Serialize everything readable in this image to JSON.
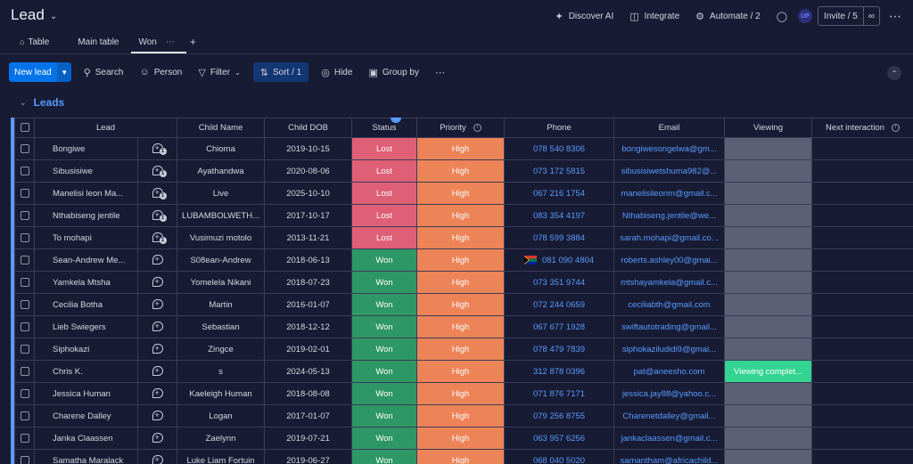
{
  "header": {
    "title": "Lead",
    "discover_ai": "Discover AI",
    "integrate": "Integrate",
    "automate": "Automate / 2",
    "avatar_initials": "UP",
    "invite": "Invite / 5"
  },
  "tabs": [
    {
      "label": "Table",
      "icon": "home-icon"
    },
    {
      "label": "Main table"
    },
    {
      "label": "Won",
      "active": true
    }
  ],
  "toolbar": {
    "new_lead": "New lead",
    "search": "Search",
    "person": "Person",
    "filter": "Filter",
    "sort": "Sort / 1",
    "hide": "Hide",
    "group_by": "Group by"
  },
  "group": {
    "title": "Leads",
    "color": "#579bfc"
  },
  "columns": [
    "Lead",
    "Child Name",
    "Child DOB",
    "Status",
    "Priority",
    "Phone",
    "Email",
    "Viewing",
    "Next interaction"
  ],
  "status_colors": {
    "Lost": "#df5f76",
    "Won": "#2e9766",
    "High": "#ed8457",
    "Viewing completed": "#33d391"
  },
  "rows": [
    {
      "lead": "Bongiwe",
      "updates": "1",
      "child": "Chioma",
      "dob": "2019-10-15",
      "status": "Lost",
      "priority": "High",
      "phone": "078 540 8306",
      "email": "bongiwesongelwa@gm...",
      "viewing": ""
    },
    {
      "lead": "Sibusisiwe",
      "updates": "1",
      "child": "Ayathandwa",
      "dob": "2020-08-06",
      "status": "Lost",
      "priority": "High",
      "phone": "073 172 5815",
      "email": "sibusisiwetshuma982@...",
      "viewing": ""
    },
    {
      "lead": "Manelisi leon Ma...",
      "updates": "1",
      "child": "Live",
      "dob": "2025-10-10",
      "status": "Lost",
      "priority": "High",
      "phone": "067 216 1754",
      "email": "manelisileonm@gmail.c...",
      "viewing": ""
    },
    {
      "lead": "Nthabiseng jentile",
      "updates": "1",
      "child": "LUBAMBOLWETH...",
      "dob": "2017-10-17",
      "status": "Lost",
      "priority": "High",
      "phone": "083 354 4197",
      "email": "Nthabiseng.jentile@we...",
      "viewing": ""
    },
    {
      "lead": "To mohapi",
      "updates": "1",
      "child": "Vusimuzi motolo",
      "dob": "2013-11-21",
      "status": "Lost",
      "priority": "High",
      "phone": "078 599 3884",
      "email": "sarah.mohapi@gmail.co...",
      "viewing": ""
    },
    {
      "lead": "Sean-Andrew Me...",
      "updates": "",
      "child": "S08ean-Andrew",
      "dob": "2018-06-13",
      "status": "Won",
      "priority": "High",
      "phone": "081 090 4804",
      "flag": true,
      "email": "roberts.ashley00@gmai...",
      "viewing": ""
    },
    {
      "lead": "Yamkela Mtsha",
      "updates": "",
      "child": "Yomelela Nikani",
      "dob": "2018-07-23",
      "status": "Won",
      "priority": "High",
      "phone": "073 351 9744",
      "email": "mtshayamkela@gmail.c...",
      "viewing": ""
    },
    {
      "lead": "Cecilia Botha",
      "updates": "",
      "child": "Martin",
      "dob": "2016-01-07",
      "status": "Won",
      "priority": "High",
      "phone": "072 244 0659",
      "email": "ceciliabth@gmail.com",
      "viewing": ""
    },
    {
      "lead": "Lieb Swiegers",
      "updates": "",
      "child": "Sebastian",
      "dob": "2018-12-12",
      "status": "Won",
      "priority": "High",
      "phone": "067 677 1928",
      "email": "swiftautotrading@gmail...",
      "viewing": ""
    },
    {
      "lead": "Siphokazi",
      "updates": "",
      "child": "Zingce",
      "dob": "2019-02-01",
      "status": "Won",
      "priority": "High",
      "phone": "078 479 7839",
      "email": "siphokaziludidi9@gmai...",
      "viewing": ""
    },
    {
      "lead": "Chris K.",
      "updates": "",
      "child": "s",
      "dob": "2024-05-13",
      "status": "Won",
      "priority": "High",
      "phone": "312 878 0396",
      "email": "pat@aneesho.com",
      "viewing": "Viewing complet..."
    },
    {
      "lead": "Jessica Human",
      "updates": "",
      "child": "Kaeleigh Human",
      "dob": "2018-08-08",
      "status": "Won",
      "priority": "High",
      "phone": "071 876 7171",
      "email": "jessica.jay88@yahoo.c...",
      "viewing": ""
    },
    {
      "lead": "Charene Dalley",
      "updates": "",
      "child": "Logan",
      "dob": "2017-01-07",
      "status": "Won",
      "priority": "High",
      "phone": "079 256 8755",
      "email": "Charenetdalley@gmail...",
      "viewing": ""
    },
    {
      "lead": "Janka Claassen",
      "updates": "",
      "child": "Zaelynn",
      "dob": "2019-07-21",
      "status": "Won",
      "priority": "High",
      "phone": "063 957 6256",
      "email": "jankaclaassen@gmail.c...",
      "viewing": ""
    },
    {
      "lead": "Samatha Maralack",
      "updates": "",
      "child": "Luke Liam Fortuin",
      "dob": "2019-06-27",
      "status": "Won",
      "priority": "High",
      "phone": "068 040 5020",
      "email": "samantham@africachild...",
      "viewing": ""
    }
  ]
}
